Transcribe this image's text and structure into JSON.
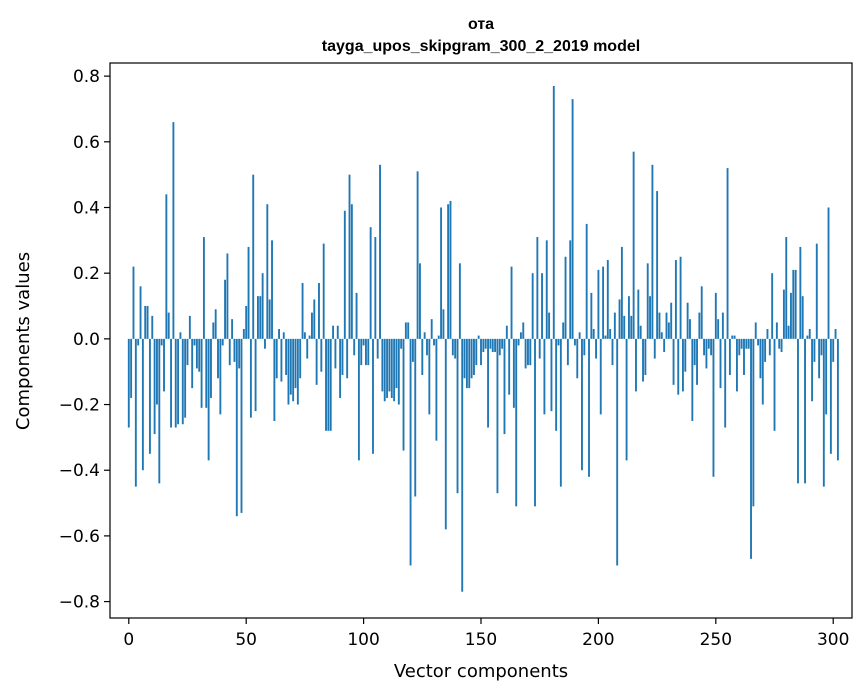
{
  "chart_data": {
    "type": "bar",
    "title": "ота",
    "subtitle": "tayga_upos_skipgram_300_2_2019 model",
    "xlabel": "Vector components",
    "ylabel": "Components values",
    "xlim": [
      -8,
      308
    ],
    "ylim": [
      -0.85,
      0.84
    ],
    "xticks": [
      0,
      50,
      100,
      150,
      200,
      250,
      300
    ],
    "xtick_labels": [
      "0",
      "50",
      "100",
      "150",
      "200",
      "250",
      "300"
    ],
    "yticks": [
      -0.8,
      -0.6,
      -0.4,
      -0.2,
      0.0,
      0.2,
      0.4,
      0.6,
      0.8
    ],
    "ytick_labels": [
      "−0.8",
      "−0.6",
      "−0.4",
      "−0.2",
      "0.0",
      "0.2",
      "0.4",
      "0.6",
      "0.8"
    ],
    "grid": false,
    "legend": "none",
    "bar_color": "#1f77b4",
    "values": [
      -0.27,
      -0.18,
      0.22,
      -0.45,
      -0.02,
      0.16,
      -0.4,
      0.1,
      0.1,
      -0.35,
      0.07,
      -0.29,
      -0.2,
      -0.44,
      -0.02,
      -0.16,
      0.44,
      0.08,
      -0.27,
      0.66,
      -0.27,
      -0.26,
      0.02,
      -0.26,
      -0.24,
      -0.08,
      0.07,
      -0.15,
      -0.02,
      -0.09,
      -0.1,
      -0.21,
      0.31,
      -0.21,
      -0.37,
      -0.18,
      0.05,
      0.09,
      -0.12,
      -0.23,
      -0.02,
      0.18,
      0.26,
      -0.08,
      0.06,
      -0.07,
      -0.54,
      -0.09,
      -0.53,
      0.03,
      0.1,
      0.28,
      -0.24,
      0.5,
      -0.22,
      0.13,
      0.13,
      0.2,
      -0.03,
      0.41,
      0.12,
      0.3,
      -0.25,
      -0.12,
      0.03,
      -0.13,
      0.02,
      -0.11,
      -0.2,
      -0.17,
      -0.19,
      -0.15,
      -0.2,
      -0.12,
      0.17,
      0.02,
      -0.06,
      0.01,
      0.08,
      0.12,
      -0.14,
      0.17,
      -0.1,
      0.29,
      -0.28,
      -0.28,
      -0.28,
      0.04,
      -0.09,
      0.04,
      -0.18,
      -0.11,
      0.39,
      -0.12,
      0.5,
      0.41,
      -0.05,
      0.14,
      -0.37,
      -0.08,
      -0.02,
      -0.08,
      -0.08,
      0.34,
      -0.35,
      0.31,
      -0.06,
      0.53,
      -0.16,
      -0.19,
      -0.18,
      -0.16,
      -0.18,
      -0.19,
      -0.15,
      -0.2,
      -0.03,
      -0.34,
      0.05,
      0.05,
      -0.69,
      -0.07,
      -0.48,
      0.51,
      0.23,
      -0.11,
      0.02,
      -0.05,
      -0.23,
      0.06,
      -0.02,
      -0.31,
      0.01,
      0.4,
      0.09,
      -0.58,
      0.41,
      0.42,
      -0.05,
      -0.06,
      -0.47,
      0.23,
      -0.77,
      -0.12,
      -0.15,
      -0.15,
      -0.12,
      -0.11,
      -0.08,
      0.01,
      -0.08,
      -0.04,
      -0.03,
      -0.27,
      -0.03,
      -0.04,
      -0.04,
      -0.47,
      -0.05,
      -0.03,
      -0.29,
      0.04,
      -0.17,
      0.22,
      -0.21,
      -0.51,
      -0.02,
      0.02,
      0.05,
      -0.09,
      -0.08,
      -0.08,
      0.2,
      -0.51,
      0.31,
      -0.06,
      0.2,
      -0.23,
      0.3,
      0.08,
      -0.22,
      0.77,
      -0.28,
      -0.02,
      -0.45,
      0.05,
      0.25,
      -0.08,
      0.3,
      0.73,
      -0.02,
      -0.12,
      0.02,
      -0.4,
      -0.05,
      0.35,
      -0.42,
      0.14,
      0.03,
      -0.06,
      0.21,
      -0.23,
      0.22,
      0.01,
      0.24,
      0.03,
      -0.08,
      0.08,
      -0.69,
      0.12,
      0.28,
      0.07,
      -0.37,
      0.13,
      0.07,
      0.57,
      -0.16,
      0.15,
      0.04,
      -0.13,
      -0.11,
      0.23,
      0.13,
      0.53,
      -0.06,
      0.45,
      0.08,
      0.02,
      -0.04,
      0.08,
      0.05,
      0.11,
      -0.14,
      0.24,
      -0.17,
      0.25,
      -0.16,
      -0.1,
      0.11,
      0.06,
      -0.25,
      -0.08,
      -0.14,
      0.08,
      0.16,
      -0.05,
      -0.09,
      -0.03,
      -0.05,
      -0.42,
      0.14,
      0.06,
      -0.15,
      0.08,
      -0.27,
      0.52,
      -0.11,
      0.01,
      0.01,
      -0.16,
      -0.05,
      -0.03,
      -0.11,
      -0.03,
      -0.03,
      -0.67,
      -0.51,
      0.05,
      -0.02,
      -0.12,
      -0.2,
      -0.07,
      0.03,
      -0.05,
      0.2,
      -0.28,
      0.05,
      -0.03,
      -0.04,
      0.15,
      0.31,
      0.04,
      0.14,
      0.21,
      0.21,
      -0.44,
      0.28,
      0.13,
      -0.44,
      0.01,
      0.03,
      -0.19,
      -0.07,
      0.29,
      -0.12,
      -0.05,
      -0.45,
      -0.23,
      0.4,
      -0.35,
      -0.07,
      0.03,
      -0.37
    ]
  }
}
